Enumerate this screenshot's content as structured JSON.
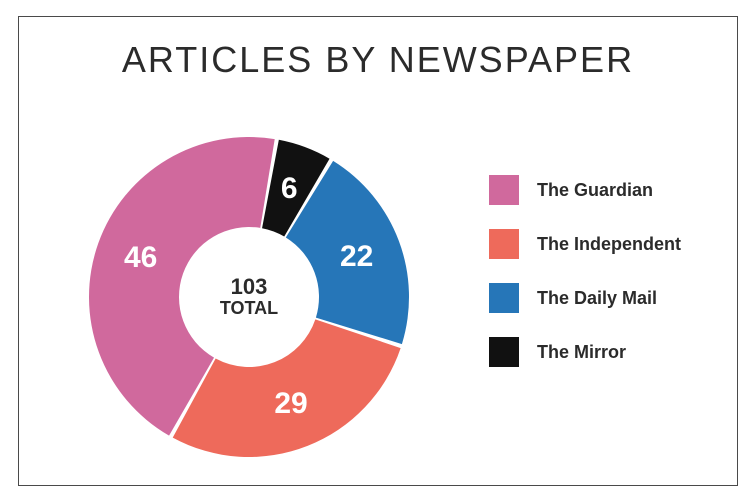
{
  "title": "ARTICLES BY NEWSPAPER",
  "title_fontsize": 36,
  "title_color": "#2b2b2b",
  "frame_border_color": "#4a4a4a",
  "background_color": "#ffffff",
  "chart": {
    "type": "donut",
    "total_value": 103,
    "total_word": "TOTAL",
    "center_num_fontsize": 22,
    "center_word_fontsize": 18,
    "outer_radius": 160,
    "inner_radius": 70,
    "start_angle_deg": -80,
    "slice_gap_deg": 1.5,
    "label_fontsize": 30,
    "label_radius": 115,
    "label_color": "#ffffff",
    "slices": [
      {
        "name": "The Mirror",
        "value": 6,
        "color": "#111111"
      },
      {
        "name": "The Daily Mail",
        "value": 22,
        "color": "#2676b8"
      },
      {
        "name": "The Independent",
        "value": 29,
        "color": "#ee6a5b"
      },
      {
        "name": "The Guardian",
        "value": 46,
        "color": "#d0699d"
      }
    ]
  },
  "legend": {
    "swatch_size": 30,
    "fontsize": 18,
    "text_color": "#2b2b2b",
    "items": [
      {
        "label": "The Guardian",
        "color": "#d0699d"
      },
      {
        "label": "The Independent",
        "color": "#ee6a5b"
      },
      {
        "label": "The Daily Mail",
        "color": "#2676b8"
      },
      {
        "label": "The Mirror",
        "color": "#111111"
      }
    ]
  }
}
